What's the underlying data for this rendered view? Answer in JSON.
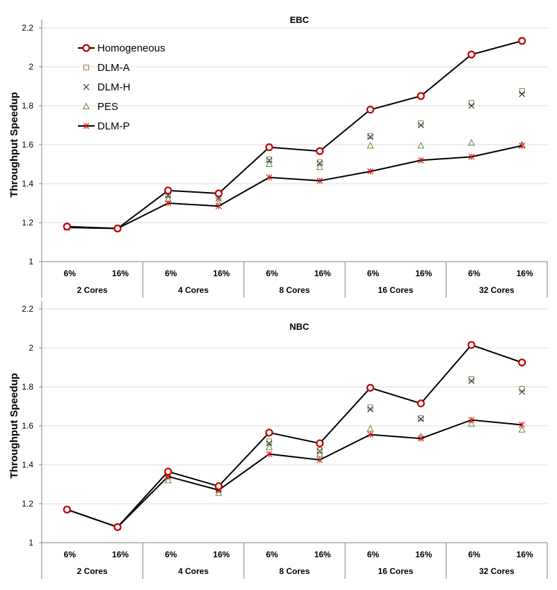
{
  "chart_data": [
    {
      "type": "line",
      "title": "EBC",
      "xlabel": "",
      "ylabel": "Throughput Speedup",
      "ylim": [
        1,
        2.2
      ],
      "yticks": [
        1,
        1.2,
        1.4,
        1.6,
        1.8,
        2,
        2.2
      ],
      "ytick_labels": [
        "1",
        "1.2",
        "1.4",
        "1.6",
        "1.8",
        "2",
        "2.2"
      ],
      "categories": [
        "6%",
        "16%",
        "6%",
        "16%",
        "6%",
        "16%",
        "6%",
        "16%",
        "6%",
        "16%"
      ],
      "groups": [
        "2 Cores",
        "4 Cores",
        "8 Cores",
        "16 Cores",
        "32 Cores"
      ],
      "series": [
        {
          "name": "Homogeneous",
          "values": [
            1.18,
            1.17,
            1.365,
            1.35,
            1.587,
            1.567,
            1.78,
            1.85,
            2.063,
            2.133
          ]
        },
        {
          "name": "DLM-A",
          "values": [
            1.175,
            1.17,
            1.345,
            1.335,
            1.525,
            1.51,
            1.645,
            1.71,
            1.815,
            1.875
          ]
        },
        {
          "name": "DLM-H",
          "values": [
            1.175,
            1.17,
            1.34,
            1.325,
            1.52,
            1.505,
            1.64,
            1.7,
            1.8,
            1.86
          ]
        },
        {
          "name": "PES",
          "values": [
            1.175,
            1.17,
            1.32,
            1.3,
            1.5,
            1.485,
            1.595,
            1.595,
            1.61,
            1.6
          ]
        },
        {
          "name": "DLM-P",
          "values": [
            1.175,
            1.17,
            1.3,
            1.285,
            1.432,
            1.415,
            1.463,
            1.52,
            1.538,
            1.595
          ]
        }
      ],
      "legend_position": "top-left"
    },
    {
      "type": "line",
      "title": "NBC",
      "xlabel": "",
      "ylabel": "Throughput Speedup",
      "ylim": [
        1,
        2.2
      ],
      "yticks": [
        1,
        1.2,
        1.4,
        1.6,
        1.8,
        2,
        2.2
      ],
      "ytick_labels": [
        "1",
        "1.2",
        "1.4",
        "1.6",
        "1.8",
        "2",
        "2.2"
      ],
      "categories": [
        "6%",
        "16%",
        "6%",
        "16%",
        "6%",
        "16%",
        "6%",
        "16%",
        "6%",
        "16%"
      ],
      "groups": [
        "2 Cores",
        "4 Cores",
        "8 Cores",
        "16 Cores",
        "32 Cores"
      ],
      "series": [
        {
          "name": "Homogeneous",
          "values": [
            1.17,
            1.08,
            1.365,
            1.29,
            1.565,
            1.51,
            1.795,
            1.715,
            2.015,
            1.925
          ]
        },
        {
          "name": "DLM-A",
          "values": [
            1.17,
            1.08,
            1.355,
            1.28,
            1.52,
            1.475,
            1.695,
            1.64,
            1.84,
            1.79
          ]
        },
        {
          "name": "DLM-H",
          "values": [
            1.17,
            1.08,
            1.35,
            1.275,
            1.51,
            1.47,
            1.685,
            1.635,
            1.83,
            1.775
          ]
        },
        {
          "name": "PES",
          "values": [
            1.17,
            1.08,
            1.32,
            1.255,
            1.49,
            1.455,
            1.585,
            1.545,
            1.61,
            1.58
          ]
        },
        {
          "name": "DLM-P",
          "values": [
            1.17,
            1.08,
            1.34,
            1.27,
            1.455,
            1.425,
            1.555,
            1.535,
            1.63,
            1.605
          ]
        }
      ],
      "legend_position": "none"
    }
  ],
  "series_styles": [
    {
      "name": "Homogeneous",
      "marker": "circle",
      "color": "#c00000",
      "line": true
    },
    {
      "name": "DLM-A",
      "marker": "square",
      "color": "#9c7a3c",
      "line": false
    },
    {
      "name": "DLM-H",
      "marker": "x",
      "color": "#1f2d3d",
      "line": false
    },
    {
      "name": "PES",
      "marker": "triangle",
      "color": "#5a8a3a",
      "line": false
    },
    {
      "name": "DLM-P",
      "marker": "star",
      "color": "#e02020",
      "line": true
    }
  ]
}
